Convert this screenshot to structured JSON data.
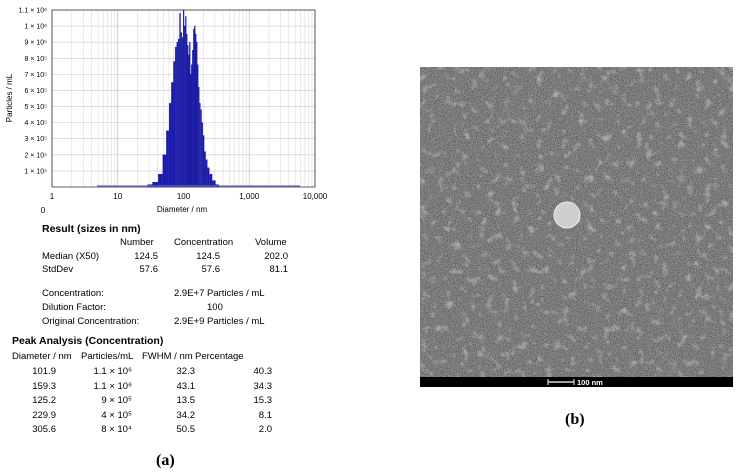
{
  "panel_a": {
    "label": "(a)",
    "chart": {
      "ylabel": "Particles / mL",
      "xlabel": "Diameter / nm",
      "y_ticks": [
        "1.1 × 10⁶",
        "1 × 10⁶",
        "9 × 10⁵",
        "8 × 10⁵",
        "7 × 10⁵",
        "6 × 10⁵",
        "5 × 10⁵",
        "4 × 10⁵",
        "3 × 10⁵",
        "2 × 10⁵",
        "1 × 10⁵"
      ],
      "x_ticks": [
        "1",
        "10",
        "100",
        "1,000",
        "10,000"
      ],
      "zero_label": "0"
    },
    "result": {
      "title": "Result (sizes in nm)",
      "headers": [
        "Number",
        "Concentration",
        "Volume"
      ],
      "rows": [
        {
          "label": "Median (X50)",
          "values": [
            "124.5",
            "124.5",
            "202.0"
          ]
        },
        {
          "label": "StdDev",
          "values": [
            "57.6",
            "57.6",
            "81.1"
          ]
        }
      ],
      "conc_label": "Concentration:",
      "conc_value": "2.9E+7 Particles / mL",
      "dil_label": "Dilution Factor:",
      "dil_value": "100",
      "orig_label": "Original Concentration:",
      "orig_value": "2.9E+9 Particles / mL"
    },
    "peak": {
      "title": "Peak Analysis (Concentration)",
      "headers": [
        "Diameter / nm",
        "Particles/mL",
        "FWHM / nm",
        "Percentage"
      ],
      "rows": [
        [
          "101.9",
          "1.1 × 10⁶",
          "32.3",
          "40.3"
        ],
        [
          "159.3",
          "1.1 × 10⁶",
          "43.1",
          "34.3"
        ],
        [
          "125.2",
          "9 × 10⁵",
          "13.5",
          "15.3"
        ],
        [
          "229.9",
          "4 × 10⁵",
          "34.2",
          "8.1"
        ],
        [
          "305.6",
          "8 × 10⁴",
          "50.5",
          "2.0"
        ]
      ]
    }
  },
  "panel_b": {
    "label": "(b)",
    "scale_bar": "100 nm"
  },
  "chart_data": {
    "type": "bar",
    "xlabel": "Diameter / nm",
    "ylabel": "Particles / mL",
    "x_scale": "log",
    "xlim": [
      1,
      10000
    ],
    "ylim": [
      0,
      1100000
    ],
    "x": [
      30,
      38,
      45,
      52,
      58,
      63,
      68,
      73,
      77,
      81,
      85,
      89,
      93,
      97,
      101,
      105,
      109,
      113,
      117,
      121,
      125,
      129,
      134,
      139,
      144,
      149,
      154,
      160,
      166,
      172,
      179,
      186,
      194,
      203,
      213,
      225,
      240,
      260,
      290,
      330
    ],
    "values": [
      15000,
      30000,
      80000,
      200000,
      350000,
      520000,
      650000,
      780000,
      870000,
      900000,
      920000,
      1080000,
      960000,
      930000,
      1100000,
      1000000,
      1060000,
      950000,
      880000,
      820000,
      900000,
      700000,
      760000,
      850000,
      980000,
      1000000,
      950000,
      900000,
      760000,
      620000,
      520000,
      480000,
      400000,
      320000,
      220000,
      170000,
      120000,
      80000,
      40000,
      15000
    ]
  }
}
